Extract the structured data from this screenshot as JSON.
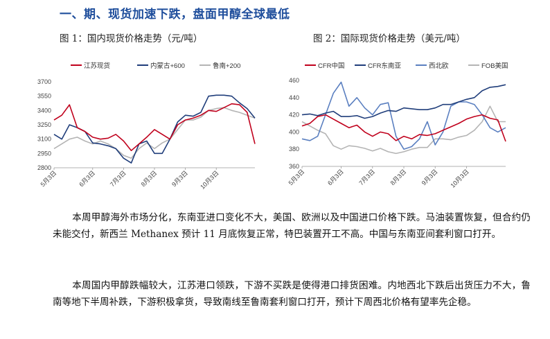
{
  "heading": "一、期、现货加速下跌，盘面甲醇全球最低",
  "figure1": {
    "caption": "图 1：国内现货价格走势（元/吨）"
  },
  "figure2": {
    "caption": "图 2：国际现货价格走势（美元/吨）"
  },
  "paragraphs": [
    "本周甲醇海外市场分化，东南亚进口变化不大，美国、欧洲以及中国进口价格下跌。马油装置恢复，但合约仍未能交付，新西兰 Methanex 预计 11 月底恢复正常，特巴装置开工不高。中国与东南亚间套利窗口打开。",
    "本周国内甲醇跌幅较大，江苏港口领跌，下游不买跌是使得港口排货困难。内地西北下跌后出货压力不大，鲁南等地下半周补跌，下游积极拿货，导致南线至鲁南套利窗口打开，预计下周西北价格有望率先企稳。"
  ],
  "chart_data": [
    {
      "type": "line",
      "title": "",
      "x": [
        "5月3日",
        "5月10日",
        "5月17日",
        "5月24日",
        "5月31日",
        "6月3日",
        "6月10日",
        "6月17日",
        "6月24日",
        "7月3日",
        "7月10日",
        "7月17日",
        "7月24日",
        "8月3日",
        "8月10日",
        "8月17日",
        "8月24日",
        "9月3日",
        "9月10日",
        "9月17日",
        "9月24日",
        "10月3日",
        "10月10日",
        "10月17日",
        "10月24日",
        "10月31日",
        "11月7日"
      ],
      "xticks": [
        "5月3日",
        "6月3日",
        "7月3日",
        "8月3日",
        "9月3日",
        "10月3日"
      ],
      "yticks": [
        2800,
        2950,
        3100,
        3250,
        3400,
        3550,
        3700
      ],
      "ytick_labels": [
        "2800",
        "2950",
        "3100",
        "3250",
        "3400",
        "3550",
        "3700"
      ],
      "ylim": [
        2800,
        3700
      ],
      "series": [
        {
          "name": "江苏现货",
          "color": "#c0001c",
          "values": [
            3300,
            3350,
            3460,
            3220,
            3180,
            3120,
            3100,
            3110,
            3150,
            3080,
            2980,
            3050,
            3120,
            3200,
            3150,
            3100,
            3250,
            3300,
            3320,
            3350,
            3400,
            3390,
            3430,
            3470,
            3460,
            3380,
            3050
          ]
        },
        {
          "name": "内蒙古+600",
          "color": "#1f3d7a",
          "values": [
            3150,
            3100,
            3250,
            3220,
            3180,
            3060,
            3050,
            3030,
            3000,
            2900,
            2850,
            3050,
            3080,
            2950,
            2950,
            3100,
            3280,
            3350,
            3340,
            3380,
            3550,
            3560,
            3560,
            3550,
            3480,
            3420,
            3320
          ]
        },
        {
          "name": "鲁南+200",
          "color": "#b4b4b4",
          "values": [
            3000,
            3050,
            3100,
            3120,
            3080,
            3050,
            3080,
            3050,
            3000,
            2930,
            2900,
            3000,
            3060,
            3000,
            3060,
            3100,
            3200,
            3300,
            3300,
            3330,
            3400,
            3420,
            3430,
            3400,
            3380,
            3350,
            3320
          ]
        }
      ]
    },
    {
      "type": "line",
      "title": "",
      "x": [
        "5月3日",
        "5月10日",
        "5月17日",
        "5月24日",
        "5月31日",
        "6月3日",
        "6月10日",
        "6月17日",
        "6月24日",
        "7月3日",
        "7月10日",
        "7月17日",
        "7月24日",
        "8月3日",
        "8月10日",
        "8月17日",
        "8月24日",
        "9月3日",
        "9月10日",
        "9月17日",
        "9月24日",
        "10月3日",
        "10月10日",
        "10月17日",
        "10月24日",
        "10月31日",
        "11月7日"
      ],
      "xticks": [
        "5月3日",
        "6月3日",
        "7月3日",
        "8月3日",
        "9月3日",
        "10月3日"
      ],
      "yticks": [
        360,
        380,
        400,
        420,
        440,
        460
      ],
      "ytick_labels": [
        "360",
        "380",
        "400",
        "420",
        "440",
        "460"
      ],
      "ylim": [
        360,
        460
      ],
      "series": [
        {
          "name": "CFR中国",
          "color": "#c0001c",
          "values": [
            407,
            410,
            418,
            420,
            415,
            410,
            405,
            408,
            400,
            395,
            400,
            398,
            390,
            395,
            392,
            397,
            396,
            398,
            402,
            406,
            410,
            415,
            418,
            420,
            416,
            414,
            389
          ]
        },
        {
          "name": "CFR东南亚",
          "color": "#1f3d7a",
          "values": [
            420,
            421,
            419,
            422,
            424,
            418,
            418,
            419,
            416,
            418,
            422,
            425,
            424,
            428,
            427,
            426,
            426,
            428,
            432,
            432,
            435,
            438,
            440,
            448,
            452,
            453,
            455
          ]
        },
        {
          "name": "西北欧",
          "color": "#5a7fc0",
          "values": [
            392,
            390,
            395,
            420,
            445,
            458,
            430,
            440,
            428,
            420,
            432,
            434,
            395,
            380,
            383,
            392,
            412,
            385,
            400,
            430,
            435,
            435,
            432,
            420,
            405,
            400,
            405
          ]
        },
        {
          "name": "FOB美国",
          "color": "#b4b4b4",
          "values": [
            412,
            407,
            402,
            398,
            384,
            380,
            384,
            383,
            381,
            378,
            381,
            377,
            375,
            377,
            380,
            382,
            382,
            392,
            392,
            391,
            394,
            396,
            402,
            412,
            430,
            412,
            412
          ]
        }
      ]
    }
  ]
}
